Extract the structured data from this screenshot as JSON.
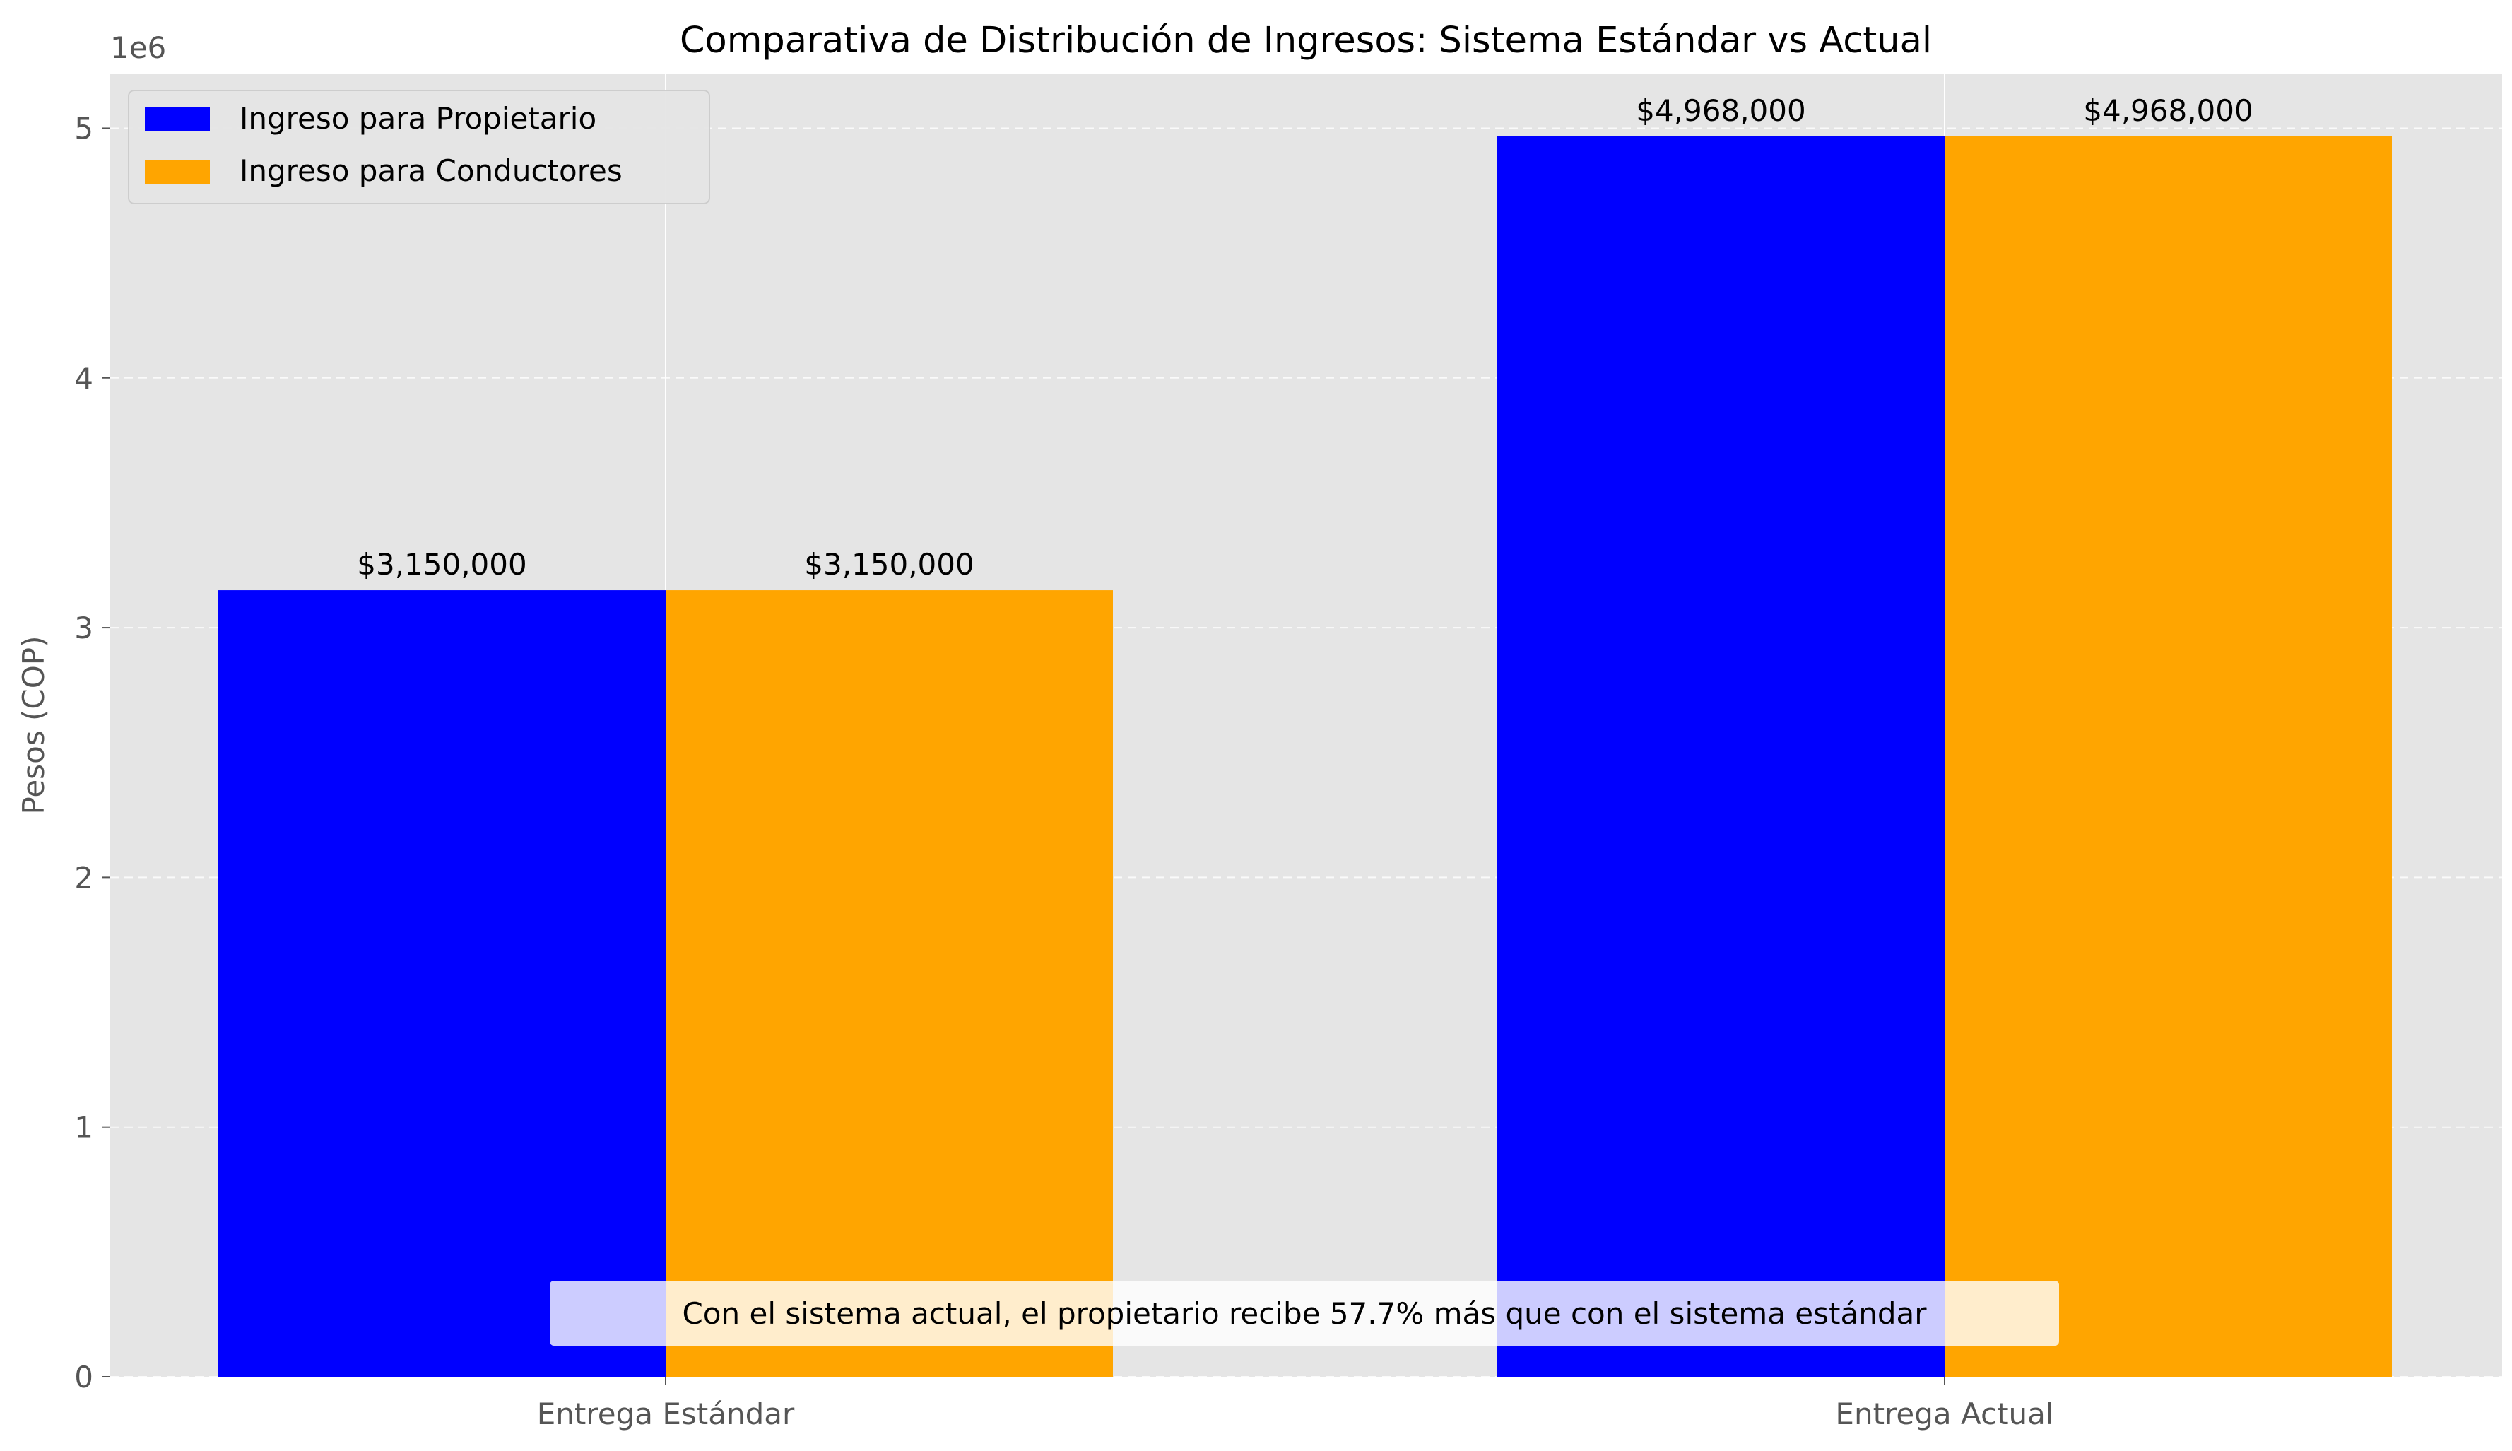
{
  "chart_data": {
    "type": "bar",
    "title": "Comparativa de Distribución de Ingresos: Sistema Estándar vs Actual",
    "xlabel": "",
    "ylabel": "Pesos (COP)",
    "y_offset_label": "1e6",
    "categories": [
      "Entrega Estándar",
      "Entrega Actual"
    ],
    "series": [
      {
        "name": "Ingreso para Propietario",
        "color": "#0000ff",
        "values": [
          3150000,
          4968000
        ],
        "labels": [
          "$3,150,000",
          "$4,968,000"
        ]
      },
      {
        "name": "Ingreso para Conductores",
        "color": "#ffa500",
        "values": [
          3150000,
          4968000
        ],
        "labels": [
          "$3,150,000",
          "$4,968,000"
        ]
      }
    ],
    "ylim": [
      0,
      5216400
    ],
    "yticks": [
      0,
      1000000,
      2000000,
      3000000,
      4000000,
      5000000
    ],
    "ytick_labels": [
      "0",
      "1",
      "2",
      "3",
      "4",
      "5"
    ],
    "grid": true,
    "legend_position": "top-left",
    "annotation": "Con el sistema actual, el propietario recibe 57.7% más que con el sistema estándar",
    "background": "#e5e5e5"
  }
}
